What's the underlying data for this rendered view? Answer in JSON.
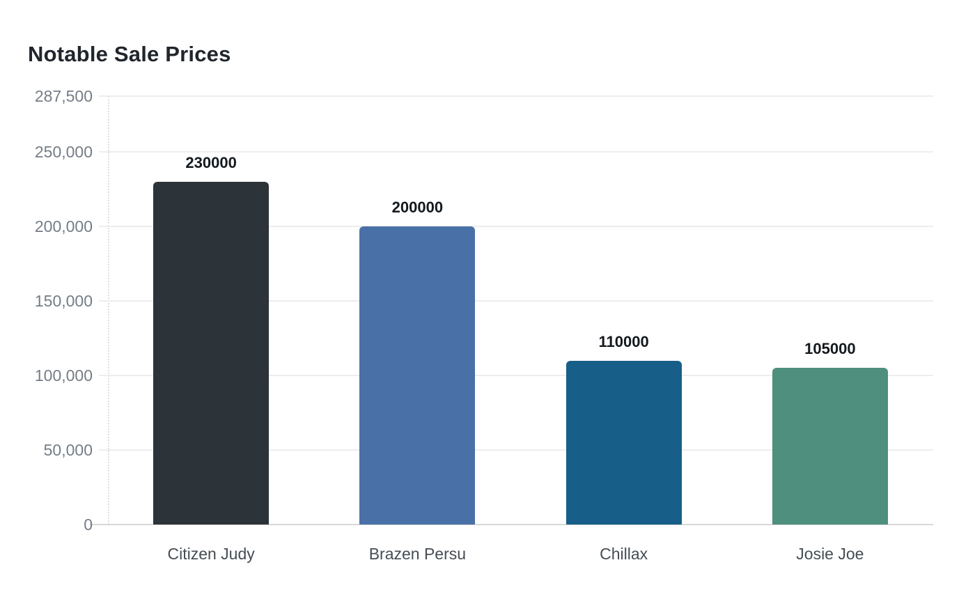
{
  "page": {
    "background_color": "#ffffff"
  },
  "chart_data": {
    "type": "bar",
    "title": "Notable Sale Prices",
    "categories": [
      "Citizen Judy",
      "Brazen Persu",
      "Chillax",
      "Josie Joe"
    ],
    "values": [
      230000,
      200000,
      110000,
      105000
    ],
    "bar_value_labels": [
      "230000",
      "200000",
      "110000",
      "105000"
    ],
    "bar_colors": [
      "#2c343a",
      "#4a70a8",
      "#175f88",
      "#4e8f7d"
    ],
    "xlabel": "",
    "ylabel": "",
    "ylim": [
      0,
      287500
    ],
    "yticks": [
      {
        "value": 287500,
        "label": "287,500"
      },
      {
        "value": 250000,
        "label": "250,000"
      },
      {
        "value": 200000,
        "label": "200,000"
      },
      {
        "value": 150000,
        "label": "150,000"
      },
      {
        "value": 100000,
        "label": "100,000"
      },
      {
        "value": 50000,
        "label": "50,000"
      },
      {
        "value": 0,
        "label": "0"
      }
    ],
    "grid": "horizontal-on",
    "legend": "none",
    "colors": {
      "title_text": "#20262c",
      "y_tick_text": "#747d87",
      "x_label_text": "#454d54",
      "value_label_text": "#14191e",
      "gridline": "#ededed",
      "baseline": "#d8d8d8",
      "axis_dotted_line": "#dcdfe2"
    }
  }
}
